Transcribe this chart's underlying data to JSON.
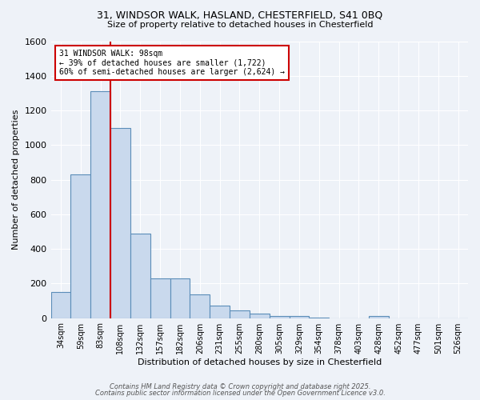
{
  "title_line1": "31, WINDSOR WALK, HASLAND, CHESTERFIELD, S41 0BQ",
  "title_line2": "Size of property relative to detached houses in Chesterfield",
  "xlabel": "Distribution of detached houses by size in Chesterfield",
  "ylabel": "Number of detached properties",
  "bar_labels": [
    "34sqm",
    "59sqm",
    "83sqm",
    "108sqm",
    "132sqm",
    "157sqm",
    "182sqm",
    "206sqm",
    "231sqm",
    "255sqm",
    "280sqm",
    "305sqm",
    "329sqm",
    "354sqm",
    "378sqm",
    "403sqm",
    "428sqm",
    "452sqm",
    "477sqm",
    "501sqm",
    "526sqm"
  ],
  "bar_values": [
    150,
    830,
    1310,
    1100,
    490,
    230,
    230,
    135,
    70,
    42,
    25,
    13,
    13,
    5,
    0,
    0,
    13,
    0,
    0,
    0,
    0
  ],
  "bar_color": "#c9d9ed",
  "bar_edge_color": "#5b8db8",
  "vline_color": "#cc0000",
  "annotation_text": "31 WINDSOR WALK: 98sqm\n← 39% of detached houses are smaller (1,722)\n60% of semi-detached houses are larger (2,624) →",
  "annotation_box_color": "#ffffff",
  "annotation_box_edge": "#cc0000",
  "ylim": [
    0,
    1600
  ],
  "yticks": [
    0,
    200,
    400,
    600,
    800,
    1000,
    1200,
    1400,
    1600
  ],
  "background_color": "#eef2f8",
  "grid_color": "#ffffff",
  "footer_line1": "Contains HM Land Registry data © Crown copyright and database right 2025.",
  "footer_line2": "Contains public sector information licensed under the Open Government Licence v3.0."
}
